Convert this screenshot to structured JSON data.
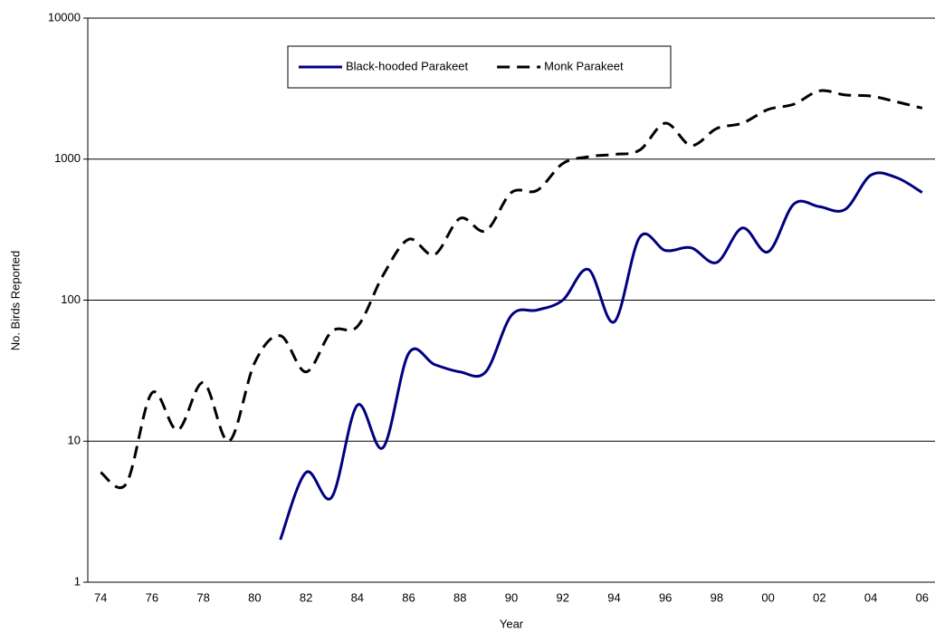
{
  "chart_data": {
    "type": "line",
    "x_label": "Year",
    "y_label": "No. Birds Reported",
    "categories": [
      "74",
      null,
      "76",
      null,
      "78",
      null,
      "80",
      null,
      "82",
      null,
      "84",
      null,
      "86",
      null,
      "88",
      null,
      "90",
      null,
      "92",
      null,
      "94",
      null,
      "96",
      null,
      "98",
      null,
      "00",
      null,
      "02",
      null,
      "04",
      null,
      "06"
    ],
    "series": [
      {
        "name": "Black-hooded Parakeet",
        "color": "#000080",
        "dashed": false,
        "values": [
          null,
          null,
          null,
          null,
          null,
          null,
          null,
          2,
          6,
          4,
          18,
          9,
          42,
          35,
          31,
          31,
          78,
          85,
          100,
          165,
          70,
          280,
          225,
          235,
          185,
          325,
          220,
          480,
          460,
          440,
          770,
          740,
          580
        ]
      },
      {
        "name": "Monk Parakeet",
        "color": "#000000",
        "dashed": true,
        "values": [
          6,
          5,
          22,
          12,
          26,
          10,
          36,
          56,
          31,
          60,
          65,
          150,
          270,
          210,
          380,
          310,
          580,
          600,
          930,
          1040,
          1080,
          1160,
          1800,
          1250,
          1650,
          1800,
          2250,
          2450,
          3050,
          2850,
          2800,
          2550,
          2300
        ]
      }
    ],
    "ylim": [
      1,
      10000
    ],
    "yticks": [
      1,
      10,
      100,
      1000,
      10000
    ],
    "log_y": true,
    "grid": true,
    "legend": "top"
  }
}
